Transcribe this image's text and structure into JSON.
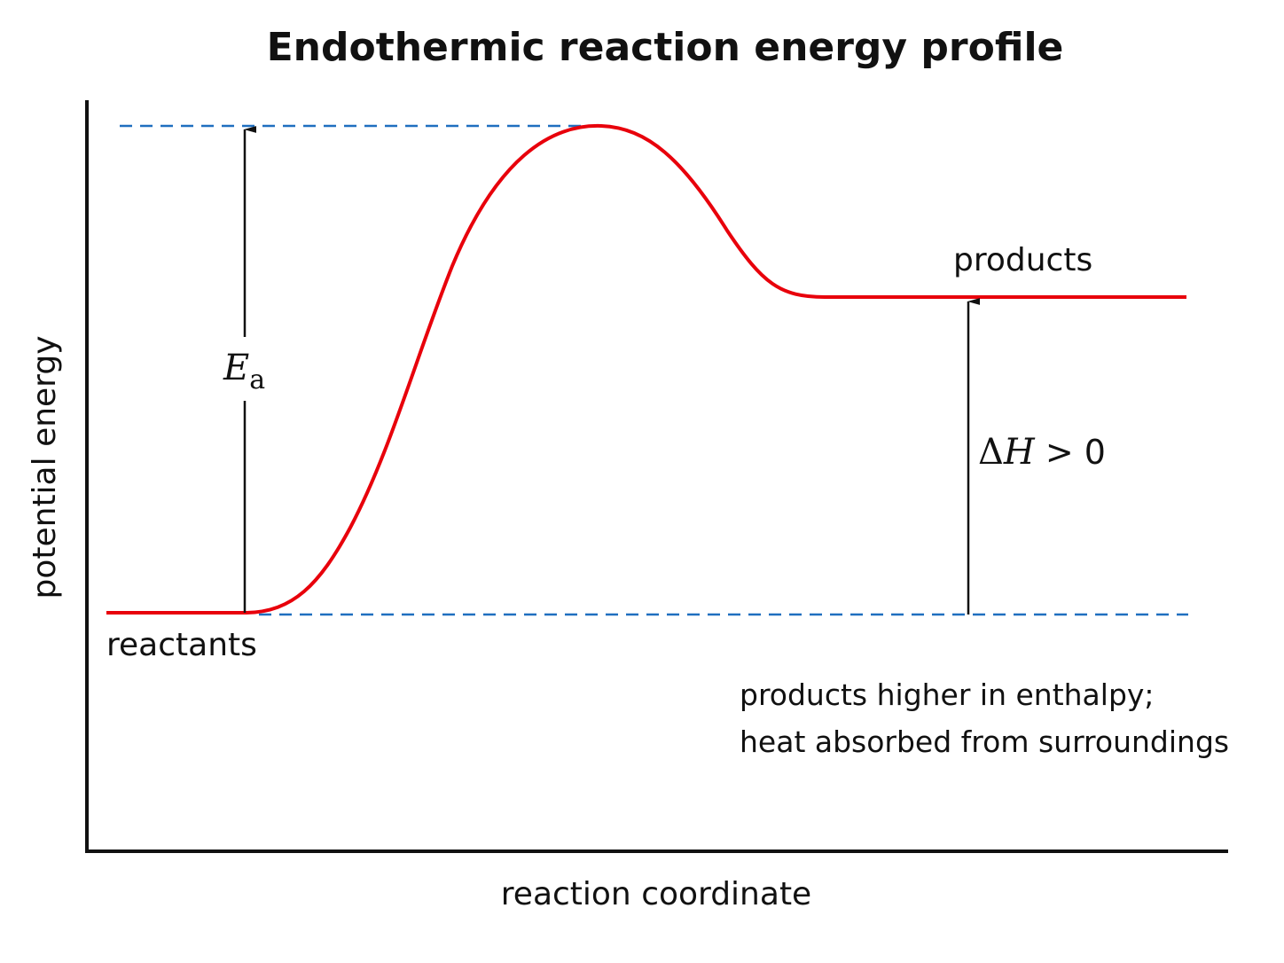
{
  "title": "Endothermic reaction energy profile",
  "axes": {
    "x_label": "reaction coordinate",
    "y_label": "potential energy"
  },
  "labels": {
    "reactants": "reactants",
    "products": "products"
  },
  "activation_energy": {
    "symbol": "E",
    "subscript": "a"
  },
  "enthalpy_change": {
    "delta": "Δ",
    "symbol": "H",
    "relation": " > 0"
  },
  "note": {
    "line1": "products higher in enthalpy;",
    "line2": "heat absorbed from surroundings"
  },
  "colors": {
    "curve": "#e8000b",
    "reference_lines": "#1f6fbf",
    "axes": "#111111",
    "arrows": "#111111"
  }
}
